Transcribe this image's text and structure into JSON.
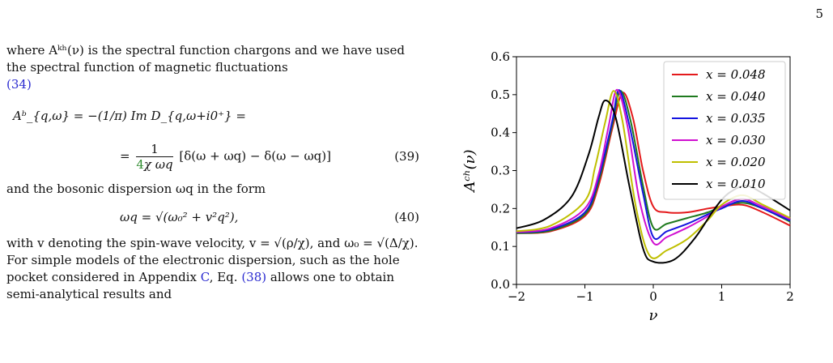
{
  "page_number": "5",
  "text": {
    "p1": "where Aᵏʰ(ν) is the spectral function chargons and we have used the spectral function of magnetic fluctuations",
    "p1_ref": "(34)",
    "eq39_line1": "Aᵇ_{q,ω} = −(1/π) Im D_{q,ω+i0⁺} =",
    "eq39_line2_num": "1",
    "eq39_line2_den_coef": "4",
    "eq39_line2_den_rest": "χ ωq",
    "eq39_line2_rest": "[δ(ω + ωq) − δ(ω − ωq)]",
    "eq39_num": "(39)",
    "p2": "and the bosonic dispersion ωq in the form",
    "eq40": "ωq = √(ω₀² + v²q²),",
    "eq40_num": "(40)",
    "p3a": "with v denoting the spin-wave velocity, v = √(ρ/χ), and ω₀ = √(Δ/χ). For simple models of the electronic dispersion, such as the hole pocket considered in Appendix",
    "p3_ref_app": "C",
    "p3b": ", Eq.",
    "p3_ref_eq": "(38)",
    "p3c": "allows one to obtain semi-analytical results and"
  },
  "chart_data": {
    "type": "line",
    "xlabel": "ν",
    "ylabel": "Aᶜʰ(ν)",
    "xlim": [
      -2,
      2
    ],
    "ylim": [
      0.0,
      0.6
    ],
    "xticks": [
      "−2",
      "−1",
      "0",
      "1",
      "2"
    ],
    "yticks": [
      "0.0",
      "0.1",
      "0.2",
      "0.3",
      "0.4",
      "0.5",
      "0.6"
    ],
    "legend_position": "top-right",
    "series": [
      {
        "name": "x = 0.048",
        "color": "#e41a1c",
        "x": [
          -2.0,
          -1.5,
          -1.0,
          -0.8,
          -0.6,
          -0.45,
          -0.3,
          -0.15,
          0.0,
          0.2,
          0.5,
          0.8,
          1.0,
          1.3,
          1.6,
          2.0
        ],
        "y": [
          0.135,
          0.14,
          0.18,
          0.26,
          0.41,
          0.505,
          0.44,
          0.3,
          0.205,
          0.19,
          0.19,
          0.2,
          0.205,
          0.21,
          0.19,
          0.155
        ]
      },
      {
        "name": "x = 0.040",
        "color": "#1f7a1f",
        "x": [
          -2.0,
          -1.5,
          -1.0,
          -0.8,
          -0.6,
          -0.48,
          -0.33,
          -0.15,
          0.0,
          0.2,
          0.5,
          0.8,
          1.0,
          1.3,
          1.6,
          2.0
        ],
        "y": [
          0.135,
          0.142,
          0.185,
          0.27,
          0.42,
          0.51,
          0.43,
          0.26,
          0.15,
          0.16,
          0.175,
          0.19,
          0.205,
          0.215,
          0.2,
          0.165
        ]
      },
      {
        "name": "x = 0.035",
        "color": "#1414e0",
        "x": [
          -2.0,
          -1.5,
          -1.0,
          -0.8,
          -0.6,
          -0.5,
          -0.35,
          -0.15,
          0.0,
          0.2,
          0.5,
          0.8,
          1.0,
          1.3,
          1.6,
          2.0
        ],
        "y": [
          0.137,
          0.145,
          0.19,
          0.28,
          0.43,
          0.512,
          0.42,
          0.24,
          0.125,
          0.14,
          0.16,
          0.185,
          0.2,
          0.22,
          0.2,
          0.168
        ]
      },
      {
        "name": "x = 0.030",
        "color": "#d010d0",
        "x": [
          -2.0,
          -1.5,
          -1.0,
          -0.8,
          -0.65,
          -0.53,
          -0.38,
          -0.2,
          0.0,
          0.2,
          0.5,
          0.8,
          1.0,
          1.3,
          1.6,
          2.0
        ],
        "y": [
          0.138,
          0.148,
          0.2,
          0.29,
          0.42,
          0.513,
          0.42,
          0.22,
          0.11,
          0.125,
          0.15,
          0.18,
          0.205,
          0.225,
          0.205,
          0.172
        ]
      },
      {
        "name": "x = 0.020",
        "color": "#bfbf00",
        "x": [
          -2.0,
          -1.5,
          -1.0,
          -0.85,
          -0.7,
          -0.58,
          -0.45,
          -0.25,
          -0.05,
          0.2,
          0.5,
          0.8,
          1.0,
          1.3,
          1.6,
          2.0
        ],
        "y": [
          0.14,
          0.155,
          0.22,
          0.31,
          0.43,
          0.51,
          0.43,
          0.2,
          0.075,
          0.09,
          0.12,
          0.17,
          0.21,
          0.235,
          0.21,
          0.175
        ]
      },
      {
        "name": "x = 0.010",
        "color": "#000000",
        "x": [
          -2.0,
          -1.6,
          -1.2,
          -0.95,
          -0.8,
          -0.7,
          -0.55,
          -0.35,
          -0.15,
          0.0,
          0.3,
          0.6,
          0.9,
          1.1,
          1.35,
          1.6,
          2.0
        ],
        "y": [
          0.148,
          0.17,
          0.23,
          0.34,
          0.44,
          0.485,
          0.44,
          0.26,
          0.095,
          0.06,
          0.065,
          0.12,
          0.2,
          0.24,
          0.26,
          0.24,
          0.195
        ]
      }
    ]
  }
}
